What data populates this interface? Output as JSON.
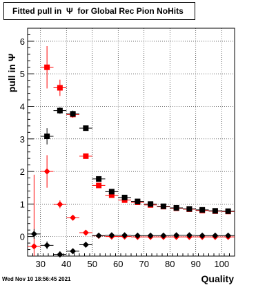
{
  "title": {
    "prefix": "Fitted pull in",
    "symbol": "Ψ",
    "suffix": "for Global Rec Pion NoHits"
  },
  "timestamp": "Wed Nov 10 18:56:45 2021",
  "chart_data": {
    "type": "scatter",
    "xlabel": "Quality",
    "ylabel_text": "pull in",
    "ylabel_symbol": "Ψ",
    "xlim": [
      25,
      105
    ],
    "ylim": [
      -0.6,
      6.4
    ],
    "x_ticks": [
      30,
      40,
      50,
      60,
      70,
      80,
      90,
      100
    ],
    "y_ticks": [
      0,
      1,
      2,
      3,
      4,
      5,
      6
    ],
    "grid": true,
    "series": [
      {
        "marker": "square",
        "color": "#ff0000",
        "points": [
          {
            "x": 32.5,
            "y": 5.2,
            "ey": 0.65
          },
          {
            "x": 37.5,
            "y": 4.57,
            "ey": 0.25
          },
          {
            "x": 42.5,
            "y": 3.75,
            "ey": 0.1
          },
          {
            "x": 47.5,
            "y": 2.47,
            "ey": 0.05
          },
          {
            "x": 52.5,
            "y": 1.57,
            "ey": 0.03
          },
          {
            "x": 57.5,
            "y": 1.27,
            "ey": 0.02
          },
          {
            "x": 62.5,
            "y": 1.12,
            "ey": 0.02
          },
          {
            "x": 67.5,
            "y": 1.05,
            "ey": 0.02
          },
          {
            "x": 72.5,
            "y": 0.97,
            "ey": 0.02
          },
          {
            "x": 77.5,
            "y": 0.92,
            "ey": 0.02
          },
          {
            "x": 82.5,
            "y": 0.87,
            "ey": 0.02
          },
          {
            "x": 87.5,
            "y": 0.84,
            "ey": 0.02
          },
          {
            "x": 92.5,
            "y": 0.8,
            "ey": 0.02
          },
          {
            "x": 97.5,
            "y": 0.78,
            "ey": 0.02
          },
          {
            "x": 102.5,
            "y": 0.77,
            "ey": 0.02
          }
        ]
      },
      {
        "marker": "square",
        "color": "#000000",
        "points": [
          {
            "x": 32.5,
            "y": 3.08,
            "ey": 0.25
          },
          {
            "x": 37.5,
            "y": 3.87,
            "ey": 0.1
          },
          {
            "x": 42.5,
            "y": 3.77,
            "ey": 0.1
          },
          {
            "x": 47.5,
            "y": 3.33,
            "ey": 0.05
          },
          {
            "x": 52.5,
            "y": 1.77,
            "ey": 0.05
          },
          {
            "x": 57.5,
            "y": 1.38,
            "ey": 0.03
          },
          {
            "x": 62.5,
            "y": 1.2,
            "ey": 0.03
          },
          {
            "x": 67.5,
            "y": 1.08,
            "ey": 0.02
          },
          {
            "x": 72.5,
            "y": 1.0,
            "ey": 0.02
          },
          {
            "x": 77.5,
            "y": 0.93,
            "ey": 0.02
          },
          {
            "x": 82.5,
            "y": 0.88,
            "ey": 0.02
          },
          {
            "x": 87.5,
            "y": 0.85,
            "ey": 0.02
          },
          {
            "x": 92.5,
            "y": 0.82,
            "ey": 0.02
          },
          {
            "x": 97.5,
            "y": 0.79,
            "ey": 0.02
          },
          {
            "x": 102.5,
            "y": 0.78,
            "ey": 0.02
          }
        ]
      },
      {
        "marker": "diamond",
        "color": "#ff0000",
        "points": [
          {
            "x": 27.5,
            "y": -0.3,
            "ey": 2.2
          },
          {
            "x": 32.5,
            "y": 2.0,
            "ey": 0.5
          },
          {
            "x": 37.5,
            "y": 0.99,
            "ey": 0.12
          },
          {
            "x": 42.5,
            "y": 0.58,
            "ey": 0.05
          },
          {
            "x": 47.5,
            "y": 0.12,
            "ey": 0.03
          },
          {
            "x": 52.5,
            "y": 0.02,
            "ey": 0.02
          },
          {
            "x": 57.5,
            "y": 0.0,
            "ey": 0.02
          },
          {
            "x": 62.5,
            "y": 0.0,
            "ey": 0.02
          },
          {
            "x": 67.5,
            "y": -0.01,
            "ey": 0.02
          },
          {
            "x": 72.5,
            "y": -0.01,
            "ey": 0.02
          },
          {
            "x": 77.5,
            "y": -0.01,
            "ey": 0.02
          },
          {
            "x": 82.5,
            "y": -0.01,
            "ey": 0.02
          },
          {
            "x": 87.5,
            "y": -0.01,
            "ey": 0.02
          },
          {
            "x": 92.5,
            "y": -0.01,
            "ey": 0.02
          },
          {
            "x": 97.5,
            "y": -0.01,
            "ey": 0.02
          },
          {
            "x": 102.5,
            "y": -0.01,
            "ey": 0.02
          }
        ]
      },
      {
        "marker": "diamond",
        "color": "#000000",
        "points": [
          {
            "x": 27.5,
            "y": 0.08,
            "ey": 0.15
          },
          {
            "x": 32.5,
            "y": -0.27,
            "ey": 0.12
          },
          {
            "x": 37.5,
            "y": -0.55,
            "ey": 0.1
          },
          {
            "x": 42.5,
            "y": -0.45,
            "ey": 0.04
          },
          {
            "x": 47.5,
            "y": -0.25,
            "ey": 0.03
          },
          {
            "x": 52.5,
            "y": 0.03,
            "ey": 0.02
          },
          {
            "x": 57.5,
            "y": 0.04,
            "ey": 0.02
          },
          {
            "x": 62.5,
            "y": 0.04,
            "ey": 0.02
          },
          {
            "x": 67.5,
            "y": 0.03,
            "ey": 0.02
          },
          {
            "x": 72.5,
            "y": 0.03,
            "ey": 0.02
          },
          {
            "x": 77.5,
            "y": 0.03,
            "ey": 0.02
          },
          {
            "x": 82.5,
            "y": 0.04,
            "ey": 0.02
          },
          {
            "x": 87.5,
            "y": 0.04,
            "ey": 0.02
          },
          {
            "x": 92.5,
            "y": 0.03,
            "ey": 0.02
          },
          {
            "x": 97.5,
            "y": 0.03,
            "ey": 0.02
          },
          {
            "x": 102.5,
            "y": 0.03,
            "ey": 0.02
          }
        ]
      }
    ]
  }
}
